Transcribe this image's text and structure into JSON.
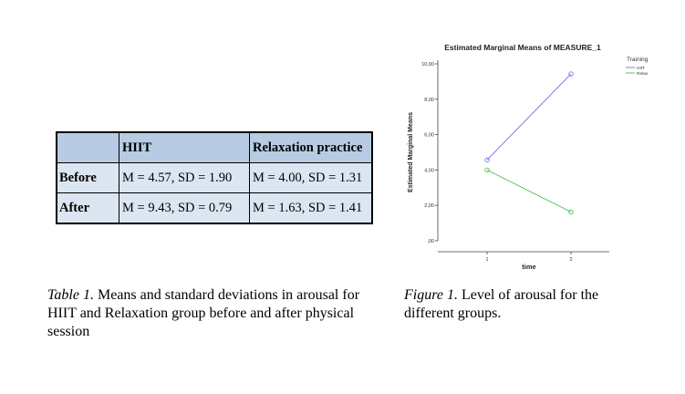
{
  "table": {
    "header": [
      "",
      "HIIT",
      "Relaxation practice"
    ],
    "rows": [
      {
        "label": "Before",
        "hiit": "M = 4.57, SD = 1.90",
        "relax": "M = 4.00, SD = 1.31"
      },
      {
        "label": "After",
        "hiit": "M = 9.43, SD = 0.79",
        "relax": "M = 1.63, SD = 1.41"
      }
    ]
  },
  "table_caption": {
    "label": "Table 1.",
    "text": " Means and standard deviations in arousal for HIIT and Relaxation group before and after physical session"
  },
  "figure_caption": {
    "label": "Figure 1.",
    "text": " Level of arousal for the different groups."
  },
  "chart_data": {
    "type": "line",
    "title": "Estimated Marginal Means of MEASURE_1",
    "xlabel": "time",
    "ylabel": "Estimated Marginal Means",
    "x": [
      "1",
      "2"
    ],
    "ylim": [
      0,
      10
    ],
    "yticks": [
      "10,00",
      "8,00",
      "6,00",
      "4,00",
      "2,00",
      ",00"
    ],
    "legend_title": "Training",
    "legend_position": "top-right",
    "grid": false,
    "series": [
      {
        "name": "HIIT",
        "values": [
          4.57,
          9.43
        ],
        "color": "#6f6fe0"
      },
      {
        "name": "Relax",
        "values": [
          4.0,
          1.63
        ],
        "color": "#3fbf3f"
      }
    ]
  }
}
